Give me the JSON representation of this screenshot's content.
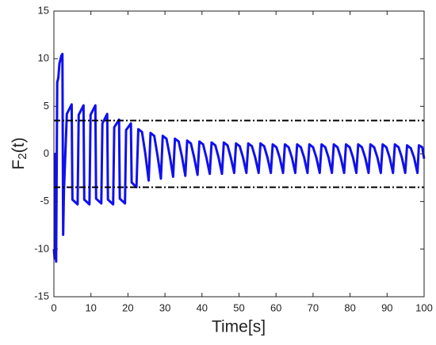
{
  "chart_data": {
    "type": "line",
    "xlabel": "Time[s]",
    "ylabel": [
      "F",
      "2",
      "(t)"
    ],
    "xlim": [
      0,
      100
    ],
    "xticks": [
      0,
      10,
      20,
      30,
      40,
      50,
      60,
      70,
      80,
      90,
      100
    ],
    "ylim": [
      -15,
      15
    ],
    "yticks": [
      -15,
      -10,
      -5,
      0,
      5,
      10,
      15
    ],
    "grid": false,
    "hlines": [
      3.5,
      -3.5
    ],
    "hline_color": "#000000",
    "x": [
      0,
      0.2,
      0.4,
      0.6,
      0.9,
      1.2,
      1.5,
      2.0,
      2.3,
      2.5,
      2.7,
      3.5,
      4.8,
      5.0,
      6.4,
      6.7,
      8.0,
      8.2,
      9.6,
      9.9,
      11.2,
      11.4,
      12.8,
      13.1,
      14.4,
      14.6,
      16.0,
      16.3,
      17.6,
      17.8,
      19.2,
      19.5,
      20.8,
      21.0,
      22.3,
      22.8,
      23.8,
      24.7,
      25.6,
      26.1,
      27.1,
      28.0,
      28.9,
      29.4,
      30.4,
      31.3,
      32.2,
      32.7,
      33.7,
      34.6,
      35.5,
      36.0,
      37.0,
      37.9,
      38.8,
      39.3,
      40.3,
      41.2,
      42.1,
      42.6,
      43.6,
      44.5,
      45.4,
      45.9,
      46.9,
      47.8,
      48.7,
      49.2,
      50.2,
      51.1,
      52.0,
      52.5,
      53.5,
      54.4,
      55.3,
      55.8,
      56.8,
      57.7,
      58.6,
      59.1,
      60.1,
      61.0,
      61.9,
      62.4,
      63.4,
      64.3,
      65.2,
      65.7,
      66.7,
      67.6,
      68.5,
      69.0,
      70.0,
      70.9,
      71.8,
      72.3,
      73.3,
      74.2,
      75.1,
      75.6,
      76.6,
      77.5,
      78.4,
      78.9,
      79.9,
      80.8,
      81.7,
      82.2,
      83.2,
      84.1,
      85.0,
      85.5,
      86.5,
      87.4,
      88.3,
      88.8,
      89.8,
      90.7,
      91.6,
      92.1,
      93.1,
      94.0,
      94.9,
      95.4,
      96.4,
      97.3,
      98.2,
      98.6,
      99.5,
      100
    ],
    "series": [
      {
        "color": "#1010ee",
        "values": [
          -10,
          -11,
          0,
          -11.3,
          7.5,
          8,
          9.5,
          10.3,
          10.5,
          -8.5,
          -4,
          4.2,
          5.2,
          -4.8,
          -5.3,
          4.1,
          5.1,
          -4.8,
          -5.3,
          4.1,
          5.1,
          -4.7,
          -5.2,
          3.2,
          4.2,
          -4.8,
          -5.3,
          2.8,
          3.6,
          -4.7,
          -5.2,
          2.5,
          3.2,
          -3,
          -3.5,
          2.6,
          2.3,
          0,
          -2.8,
          2.2,
          1.9,
          -0.2,
          -2.6,
          1.9,
          1.6,
          -0.2,
          -2.4,
          1.6,
          1.3,
          -0.3,
          -2.3,
          1.4,
          1.1,
          -0.4,
          -2.2,
          1.3,
          1.0,
          -0.4,
          -2.1,
          1.2,
          0.9,
          -0.4,
          -2.1,
          1.2,
          0.9,
          -0.4,
          -2.0,
          1.1,
          0.8,
          -0.4,
          -2.0,
          1.1,
          0.8,
          -0.4,
          -2.0,
          1.1,
          0.8,
          -0.4,
          -2.0,
          1.0,
          0.7,
          -0.4,
          -2.0,
          1.0,
          0.7,
          -0.4,
          -2.0,
          1.0,
          0.7,
          -0.4,
          -2.0,
          1.0,
          0.7,
          -0.4,
          -2.0,
          1.0,
          0.7,
          -0.4,
          -2.0,
          1.0,
          0.7,
          -0.4,
          -2.0,
          1.0,
          0.7,
          -0.4,
          -2.0,
          1.0,
          0.7,
          -0.4,
          -2.0,
          1.0,
          0.7,
          -0.4,
          -2.0,
          1.0,
          0.7,
          -0.4,
          -2.0,
          1.0,
          0.7,
          -0.4,
          -2.0,
          0.9,
          0.6,
          -0.4,
          -2.0,
          0.9,
          0.7,
          -0.5
        ]
      }
    ]
  }
}
